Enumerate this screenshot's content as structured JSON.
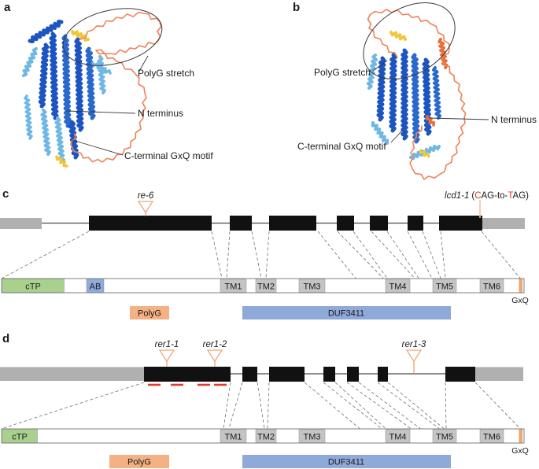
{
  "figure": {
    "panel_a": {
      "label": "a",
      "polyg": "PolyG stretch",
      "n_terminus": "N terminus",
      "gxq_motif": "C-terminal GxQ motif"
    },
    "panel_b": {
      "label": "b",
      "polyg": "PolyG stretch",
      "n_terminus": "N terminus",
      "gxq_motif": "C-terminal GxQ motif"
    },
    "panel_c": {
      "label": "c",
      "mutation_re6": "re-6",
      "mutation_lcd1": {
        "gene": "lcd1-1",
        "paren": "(",
        "red_c": "C",
        "mid": "AG-to-",
        "red_t": "T",
        "tail": "AG)"
      },
      "domains": {
        "ctp": "cTP",
        "ab": "AB",
        "tm1": "TM1",
        "tm2": "TM2",
        "tm3": "TM3",
        "tm4": "TM4",
        "tm5": "TM5",
        "tm6": "TM6"
      },
      "gxq": "GxQ",
      "polyg_box": "PolyG",
      "duf_box": "DUF3411"
    },
    "panel_d": {
      "label": "d",
      "mutation_rer1_1": "rer1-1",
      "mutation_rer1_2": "rer1-2",
      "mutation_rer1_3": "rer1-3",
      "domains": {
        "ctp": "cTP",
        "tm1": "TM1",
        "tm2": "TM2",
        "tm3": "TM3",
        "tm4": "TM4",
        "tm5": "TM5",
        "tm6": "TM6"
      },
      "gxq": "GxQ",
      "polyg_box": "PolyG",
      "duf_box": "DUF3411"
    },
    "colors": {
      "helix_dark_blue": "#1c54c0",
      "helix_mid_blue": "#2a69cc",
      "helix_light_blue": "#6fb8e4",
      "loop_orange": "#ef8258",
      "accent_yellow": "#f2c63a",
      "accent_orange_red": "#e8703c",
      "exon_black": "#111111",
      "utr_gray": "#b0b0b0",
      "tm_gray": "#c4c4c4",
      "ctp_green": "#a9d18e",
      "ab_blue": "#8faadc",
      "duf3411_blue": "#8fa9d9",
      "polyg_orange": "#f4b183",
      "gxq_mark_orange": "#f2a76e",
      "mutation_marker_tan": "#efa87d",
      "deletion_dash_red": "#e23b2e",
      "mutation_letter_red": "#d93a2b"
    }
  }
}
